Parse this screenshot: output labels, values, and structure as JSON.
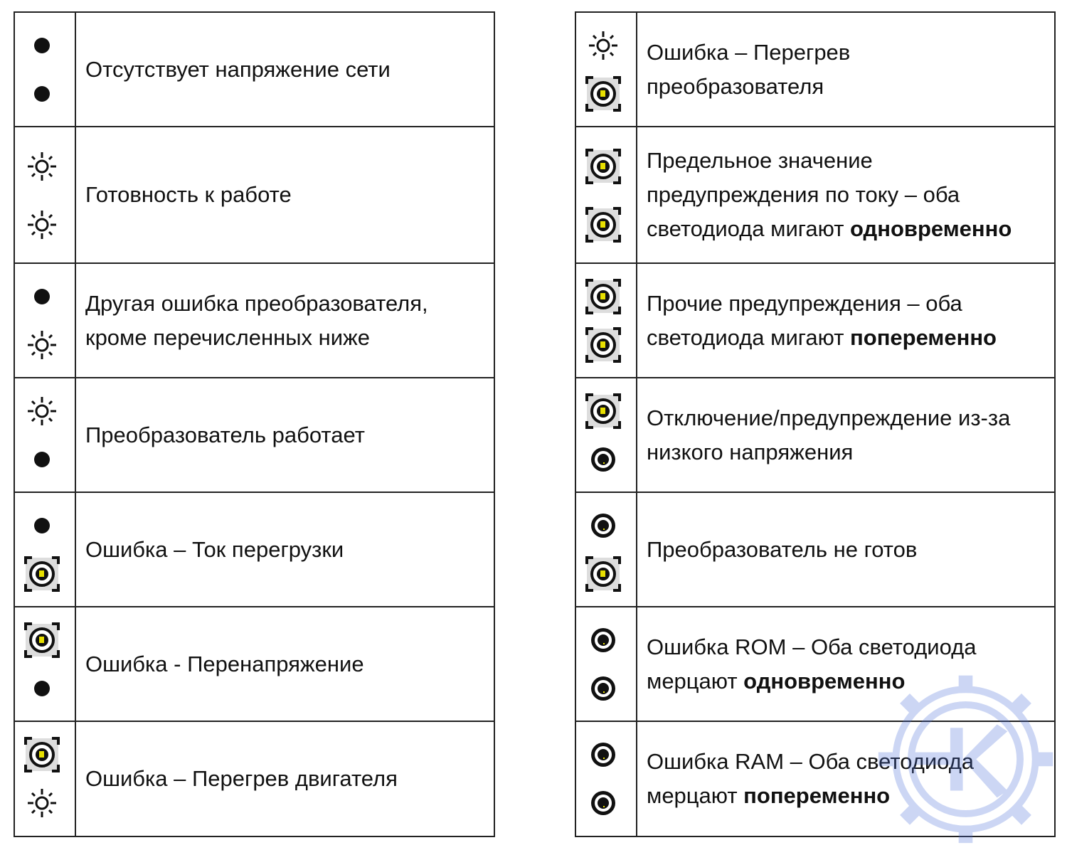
{
  "legend_icons": {
    "off": "led-off-icon",
    "on": "led-on-icon",
    "blink": "led-blink-icon",
    "flicker": "led-flicker-icon"
  },
  "colors": {
    "blink_center": "#e8e000",
    "watermark": "#4a6fd8"
  },
  "left_table": [
    {
      "leds": [
        "off",
        "off"
      ],
      "lines": [
        {
          "t": "Отсутствует напряжение сети",
          "b": ""
        }
      ]
    },
    {
      "leds": [
        "on",
        "on"
      ],
      "lines": [
        {
          "t": "Готовность к работе",
          "b": ""
        }
      ]
    },
    {
      "leds": [
        "off",
        "on"
      ],
      "lines": [
        {
          "t": "Другая ошибка преобразователя,",
          "b": ""
        },
        {
          "t": "кроме перечисленных ниже",
          "b": ""
        }
      ]
    },
    {
      "leds": [
        "on",
        "off"
      ],
      "lines": [
        {
          "t": "Преобразователь работает",
          "b": ""
        }
      ]
    },
    {
      "leds": [
        "off",
        "blink"
      ],
      "lines": [
        {
          "t": "Ошибка – Ток перегрузки",
          "b": ""
        }
      ]
    },
    {
      "leds": [
        "blink",
        "off"
      ],
      "lines": [
        {
          "t": "Ошибка - Перенапряжение",
          "b": ""
        }
      ]
    },
    {
      "leds": [
        "blink",
        "on"
      ],
      "lines": [
        {
          "t": "Ошибка – Перегрев двигателя",
          "b": ""
        }
      ]
    }
  ],
  "right_table": [
    {
      "leds": [
        "on",
        "blink"
      ],
      "lines": [
        {
          "t": "Ошибка – Перегрев",
          "b": ""
        },
        {
          "t": "преобразователя",
          "b": ""
        }
      ]
    },
    {
      "leds": [
        "blink",
        "blink"
      ],
      "lines": [
        {
          "t": "Предельное значение",
          "b": ""
        },
        {
          "t": "предупреждения по току – оба",
          "b": ""
        },
        {
          "t": "светодиода мигают ",
          "b": "одновременно"
        }
      ]
    },
    {
      "leds": [
        "blink",
        "blink"
      ],
      "lines": [
        {
          "t": "Прочие предупреждения – оба",
          "b": ""
        },
        {
          "t": "светодиода мигают ",
          "b": "попеременно"
        }
      ]
    },
    {
      "leds": [
        "blink",
        "flicker"
      ],
      "lines": [
        {
          "t": "Отключение/предупреждение из-за",
          "b": ""
        },
        {
          "t": "низкого напряжения",
          "b": ""
        }
      ]
    },
    {
      "leds": [
        "flicker",
        "blink"
      ],
      "lines": [
        {
          "t": "Преобразователь не готов",
          "b": ""
        }
      ]
    },
    {
      "leds": [
        "flicker",
        "flicker"
      ],
      "lines": [
        {
          "t": "Ошибка ROM – Оба светодиода",
          "b": ""
        },
        {
          "t": "мерцают ",
          "b": "одновременно"
        }
      ]
    },
    {
      "leds": [
        "flicker",
        "flicker"
      ],
      "lines": [
        {
          "t": "Ошибка RAM – Оба светодиода",
          "b": ""
        },
        {
          "t": "мерцают ",
          "b": "попеременно"
        }
      ]
    }
  ]
}
